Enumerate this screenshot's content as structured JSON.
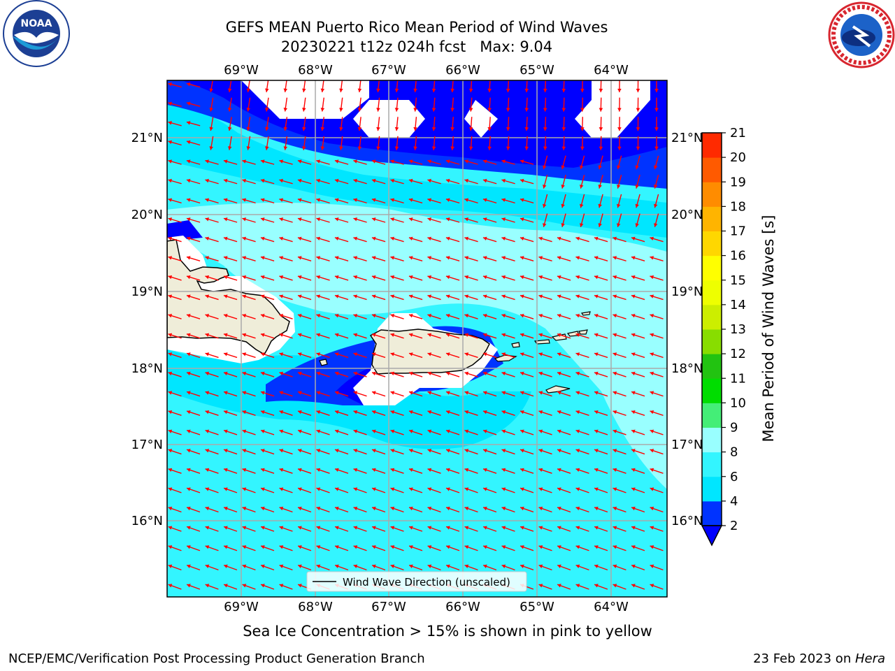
{
  "header": {
    "title_line1": "GEFS MEAN Puerto Rico Mean Period of Wind Waves",
    "title_line2": "20230221 t12z 024h fcst   Max: 9.04"
  },
  "logos": {
    "left": "noaa-logo",
    "right": "nws-logo"
  },
  "map": {
    "lon_labels": [
      "69°W",
      "68°W",
      "67°W",
      "66°W",
      "65°W",
      "64°W"
    ],
    "lat_labels": [
      "21°N",
      "20°N",
      "19°N",
      "18°N",
      "17°N",
      "16°N"
    ],
    "legend_label": "Wind Wave Direction (unscaled)",
    "arrow_color": "#ff0000",
    "land_color": "#efedd9"
  },
  "colorbar": {
    "label": "Mean Period of Wind Waves [s]",
    "ticks": [
      "2",
      "4",
      "6",
      "8",
      "9",
      "10",
      "11",
      "12",
      "13",
      "14",
      "15",
      "16",
      "17",
      "18",
      "19",
      "20",
      "21"
    ],
    "colors": [
      "#0033ff",
      "#00e6ff",
      "#33f5ff",
      "#99ffff",
      "#44ee77",
      "#00dd00",
      "#22c311",
      "#88dd00",
      "#ccee00",
      "#eeff00",
      "#ffff00",
      "#ffd700",
      "#ffb400",
      "#ff8c00",
      "#ff5a00",
      "#ff2a00"
    ],
    "under_color": "#0000ff"
  },
  "caption": "Sea Ice Concentration > 15% is shown in pink to yellow",
  "footer": {
    "left": "NCEP/EMC/Verification Post Processing Product Generation Branch",
    "right_prefix": "23 Feb 2023 on ",
    "right_host": "Hera"
  }
}
